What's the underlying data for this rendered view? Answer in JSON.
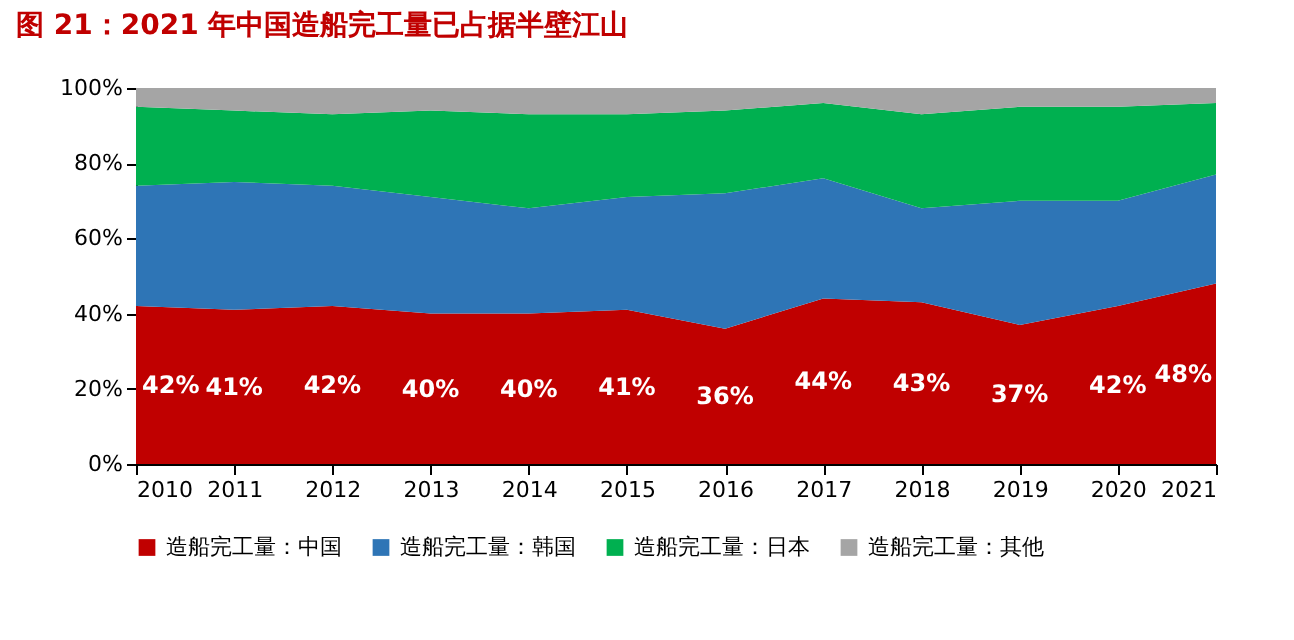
{
  "chart_data": {
    "type": "area",
    "title": "图 21：2021 年中国造船完工量已占据半壁江山",
    "stacked": true,
    "categories": [
      "2010",
      "2011",
      "2012",
      "2013",
      "2014",
      "2015",
      "2016",
      "2017",
      "2018",
      "2019",
      "2020",
      "2021"
    ],
    "series": [
      {
        "name": "造船完工量：中国",
        "color": "#c00000",
        "values": [
          42,
          41,
          42,
          40,
          40,
          41,
          36,
          44,
          43,
          37,
          42,
          48
        ],
        "value_labels": [
          "42%",
          "41%",
          "42%",
          "40%",
          "40%",
          "41%",
          "36%",
          "44%",
          "43%",
          "37%",
          "42%",
          "48%"
        ]
      },
      {
        "name": "造船完工量：韩国",
        "color": "#2e75b6",
        "values": [
          32,
          34,
          32,
          31,
          28,
          30,
          36,
          32,
          25,
          33,
          28,
          29
        ]
      },
      {
        "name": "造船完工量：日本",
        "color": "#00b050",
        "values": [
          21,
          19,
          19,
          23,
          25,
          22,
          22,
          20,
          25,
          25,
          25,
          19
        ]
      },
      {
        "name": "造船完工量：其他",
        "color": "#a5a5a5",
        "values": [
          5,
          6,
          7,
          6,
          7,
          7,
          6,
          4,
          7,
          5,
          5,
          4
        ]
      }
    ],
    "ylim": [
      0,
      100
    ],
    "yticks": [
      {
        "value": 0,
        "label": "0%"
      },
      {
        "value": 20,
        "label": "20%"
      },
      {
        "value": 40,
        "label": "40%"
      },
      {
        "value": 60,
        "label": "60%"
      },
      {
        "value": 80,
        "label": "80%"
      },
      {
        "value": 100,
        "label": "100%"
      }
    ],
    "grid": false,
    "legend": "bottom"
  }
}
